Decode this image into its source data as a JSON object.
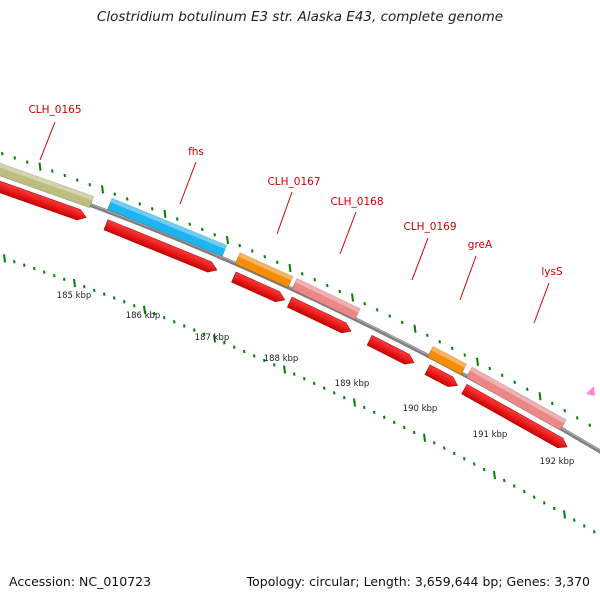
{
  "title": "Clostridium botulinum E3 str. Alaska E43, complete genome",
  "footer": {
    "accession": "Accession: NC_010723",
    "summary": "Topology: circular; Length: 3,659,644 bp; Genes: 3,370"
  },
  "genes": [
    {
      "label": "CLH_0165",
      "color": "#bdbd80"
    },
    {
      "label": "fhs",
      "color": "#1eb4f0"
    },
    {
      "label": "CLH_0167",
      "color": "#f58c0a"
    },
    {
      "label": "CLH_0168",
      "color": "#eb8787"
    },
    {
      "label": "CLH_0169",
      "color": null
    },
    {
      "label": "greA",
      "color": "#f58c0a"
    },
    {
      "label": "lysS",
      "color": "#eb8787"
    }
  ],
  "scale_labels": [
    "185 kbp",
    "186 kbp",
    "187 kbp",
    "188 kbp",
    "189 kbp",
    "190 kbp",
    "191 kbp",
    "192 kbp"
  ],
  "colors": {
    "label_red": "#cc0000",
    "cds_red": "#ee0000",
    "backbone_gray": "#808080",
    "tick_green": "#008000",
    "marker_pink": "#ff88cc"
  }
}
